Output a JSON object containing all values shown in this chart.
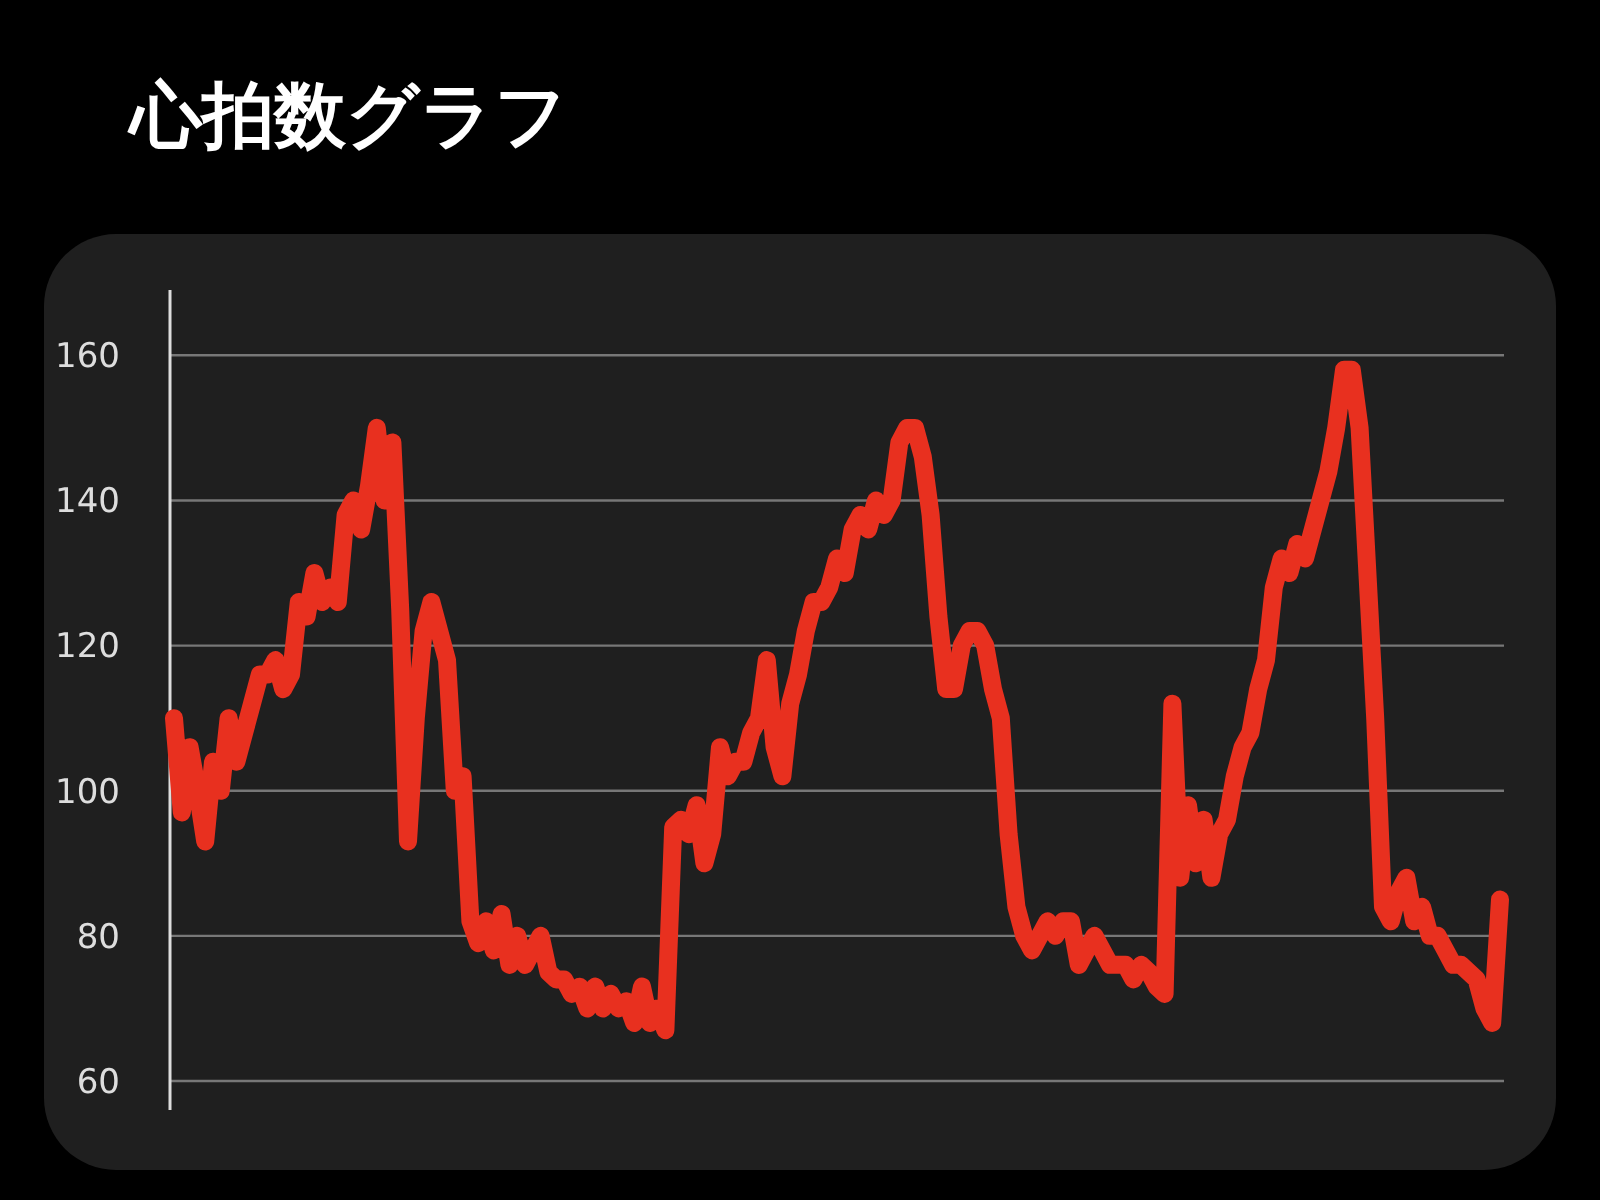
{
  "chart_data": {
    "type": "line",
    "title": "心拍数グラフ",
    "categories": [
      null,
      null,
      null,
      null,
      null,
      null,
      null,
      null,
      null,
      null,
      null,
      null,
      null,
      null,
      null,
      null,
      null,
      null,
      null,
      null,
      null,
      null,
      null,
      null,
      null,
      null,
      null,
      null,
      null,
      null,
      null,
      null,
      null,
      null,
      null,
      null,
      null,
      null,
      null,
      null,
      null,
      null,
      null,
      null,
      null,
      null,
      null,
      null,
      null,
      null,
      null,
      null,
      null,
      null,
      null,
      null,
      null,
      null,
      null,
      null,
      null,
      null,
      null,
      null,
      null,
      null,
      null,
      null,
      null,
      null,
      null,
      null,
      null,
      null,
      null,
      null,
      null,
      null,
      null,
      null,
      null,
      null,
      null,
      null,
      null,
      null,
      null,
      null,
      null,
      null,
      null,
      null,
      null,
      null,
      null,
      null,
      null,
      null,
      null,
      null,
      null,
      null,
      null,
      null,
      null,
      null,
      null,
      null,
      null,
      null,
      null,
      null,
      null,
      null,
      null,
      null,
      null,
      null,
      null,
      null,
      null,
      null,
      null,
      null,
      null,
      null,
      null,
      null,
      null,
      null,
      null,
      null,
      null,
      null,
      null,
      null,
      null,
      null,
      null,
      null,
      null,
      null,
      null,
      null,
      null,
      null,
      null,
      null,
      null,
      null,
      null,
      null,
      null,
      null,
      null,
      null,
      null,
      null,
      null,
      null,
      null,
      null,
      null,
      null,
      null,
      null,
      null,
      null,
      null,
      null,
      null
    ],
    "series": [
      {
        "color": "#e8301f",
        "values": [
          110,
          97,
          106,
          100,
          93,
          104,
          100,
          110,
          104,
          108,
          112,
          116,
          116,
          118,
          114,
          116,
          126,
          124,
          130,
          126,
          128,
          126,
          138,
          140,
          136,
          142,
          150,
          140,
          148,
          125,
          93,
          110,
          122,
          126,
          122,
          118,
          100,
          102,
          82,
          79,
          82,
          78,
          83,
          76,
          80,
          76,
          78,
          80,
          75,
          74,
          74,
          72,
          73,
          70,
          73,
          70,
          72,
          70,
          71,
          68,
          73,
          68,
          70,
          67,
          95,
          96,
          94,
          98,
          90,
          94,
          106,
          102,
          104,
          104,
          108,
          110,
          118,
          106,
          102,
          112,
          116,
          122,
          126,
          126,
          128,
          132,
          130,
          136,
          138,
          136,
          140,
          138,
          140,
          148,
          150,
          150,
          146,
          138,
          124,
          114,
          114,
          120,
          122,
          122,
          120,
          114,
          110,
          94,
          84,
          80,
          78,
          80,
          82,
          80,
          82,
          82,
          76,
          78,
          80,
          78,
          76,
          76,
          76,
          74,
          76,
          75,
          73,
          72,
          112,
          88,
          98,
          90,
          96,
          88,
          94,
          96,
          102,
          106,
          108,
          114,
          118,
          128,
          132,
          130,
          134,
          132,
          136,
          140,
          144,
          150,
          158,
          158,
          150,
          130,
          110,
          84,
          82,
          86,
          88,
          82,
          84,
          80,
          80,
          78,
          76,
          76,
          75,
          74,
          70,
          68,
          85
        ]
      }
    ],
    "ylim": [
      56,
      169
    ],
    "yticks": [
      60,
      80,
      100,
      120,
      140,
      160
    ],
    "grid": "y",
    "marker": "none",
    "line_style": "solid"
  }
}
